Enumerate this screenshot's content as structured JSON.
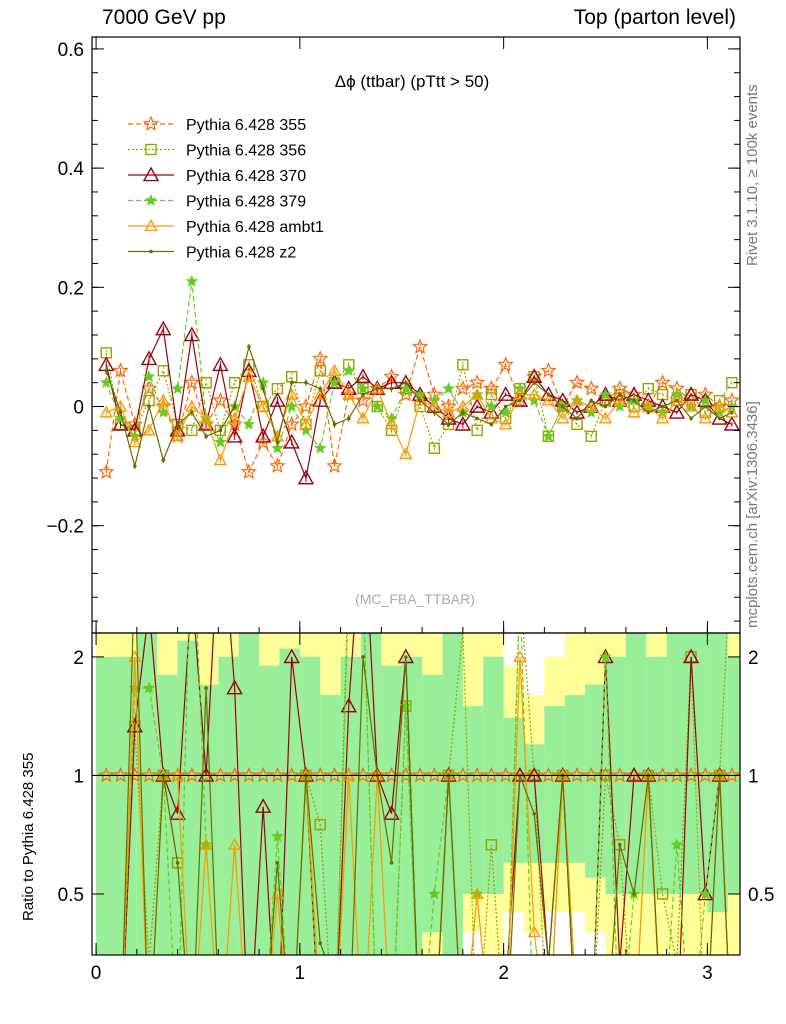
{
  "header": {
    "left": "7000 GeV pp",
    "right": "Top (parton level)"
  },
  "side_labels": {
    "rivet": "Rivet 3.1.10, ≥ 100k events",
    "mcplots": "mcplots.cern.ch [arXiv:1306.3436]"
  },
  "ratio_ylabel": "Ratio to Pythia 6.428 355",
  "chart_data": {
    "type": "line",
    "title": "Δϕ (ttbar) (pTtt > 50)",
    "watermark": "(MC_FBA_TTBAR)",
    "main_ylim": [
      -0.38,
      0.62
    ],
    "xlim": [
      -0.02,
      3.16
    ],
    "main_yticks": [
      "0.6",
      "0.4",
      "0.2",
      "0",
      "−0.2"
    ],
    "ratio_ylim_log": [
      0.35,
      2.3
    ],
    "ratio_yticks": [
      "0.5",
      "1",
      "2"
    ],
    "xticks": [
      "0",
      "1",
      "2",
      "3"
    ],
    "ratio_reference": 1,
    "bands": {
      "x_start": 0.0,
      "bin_width": 0.1,
      "green": [
        [
          0.35,
          2.0
        ],
        [
          0.35,
          2.0
        ],
        [
          0.35,
          2.3
        ],
        [
          0.35,
          1.8
        ],
        [
          0.35,
          2.2
        ],
        [
          0.35,
          1.7
        ],
        [
          0.35,
          2.0
        ],
        [
          0.35,
          2.3
        ],
        [
          0.35,
          1.9
        ],
        [
          0.35,
          2.1
        ],
        [
          0.35,
          2.0
        ],
        [
          0.35,
          1.6
        ],
        [
          0.35,
          2.0
        ],
        [
          0.35,
          2.3
        ],
        [
          0.35,
          1.9
        ],
        [
          0.35,
          2.0
        ],
        [
          0.4,
          1.8
        ],
        [
          0.35,
          2.3
        ],
        [
          0.5,
          1.5
        ],
        [
          0.5,
          2.0
        ],
        [
          0.6,
          1.4
        ],
        [
          0.6,
          1.2
        ],
        [
          0.6,
          1.5
        ],
        [
          0.6,
          1.6
        ],
        [
          0.55,
          1.7
        ],
        [
          0.5,
          2.0
        ],
        [
          0.5,
          2.3
        ],
        [
          0.5,
          2.0
        ],
        [
          0.5,
          2.3
        ],
        [
          0.5,
          2.3
        ],
        [
          0.45,
          2.3
        ],
        [
          0.5,
          2.0
        ]
      ],
      "yellow": [
        [
          0.35,
          2.3
        ],
        [
          0.35,
          2.3
        ],
        [
          0.35,
          2.3
        ],
        [
          0.35,
          2.3
        ],
        [
          0.35,
          2.3
        ],
        [
          0.35,
          2.3
        ],
        [
          0.35,
          2.3
        ],
        [
          0.35,
          2.3
        ],
        [
          0.35,
          2.3
        ],
        [
          0.35,
          2.3
        ],
        [
          0.35,
          2.3
        ],
        [
          0.35,
          2.3
        ],
        [
          0.35,
          2.3
        ],
        [
          0.35,
          2.3
        ],
        [
          0.35,
          2.3
        ],
        [
          0.35,
          2.3
        ],
        [
          0.35,
          2.3
        ],
        [
          0.35,
          2.3
        ],
        [
          0.4,
          2.3
        ],
        [
          0.35,
          2.3
        ],
        [
          0.45,
          1.9
        ],
        [
          0.4,
          1.6
        ],
        [
          0.45,
          2.0
        ],
        [
          0.45,
          2.3
        ],
        [
          0.4,
          2.3
        ],
        [
          0.35,
          2.3
        ],
        [
          0.35,
          2.3
        ],
        [
          0.35,
          2.3
        ],
        [
          0.35,
          2.3
        ],
        [
          0.35,
          2.3
        ],
        [
          0.35,
          2.3
        ],
        [
          0.35,
          2.3
        ]
      ]
    },
    "x": [
      0.05,
      0.12,
      0.19,
      0.26,
      0.33,
      0.4,
      0.47,
      0.54,
      0.61,
      0.68,
      0.75,
      0.82,
      0.89,
      0.96,
      1.03,
      1.1,
      1.17,
      1.24,
      1.31,
      1.38,
      1.45,
      1.52,
      1.59,
      1.66,
      1.73,
      1.8,
      1.87,
      1.94,
      2.01,
      2.08,
      2.15,
      2.22,
      2.29,
      2.36,
      2.43,
      2.5,
      2.57,
      2.64,
      2.71,
      2.78,
      2.85,
      2.92,
      2.99,
      3.06,
      3.12
    ],
    "series": [
      {
        "name": "Pythia 6.428 355",
        "color": "#ff6600",
        "dash": "5,3",
        "marker": "star",
        "y": [
          -0.11,
          0.06,
          -0.03,
          0.03,
          0.0,
          -0.05,
          0.04,
          -0.03,
          0.01,
          -0.03,
          -0.11,
          -0.06,
          -0.1,
          -0.03,
          0.0,
          0.08,
          -0.1,
          0.02,
          0.01,
          0.03,
          0.05,
          0.02,
          0.1,
          0.02,
          0.0,
          0.03,
          0.04,
          0.03,
          0.07,
          0.01,
          0.05,
          0.06,
          0.0,
          0.04,
          0.03,
          0.01,
          0.03,
          0.02,
          0.0,
          0.04,
          0.03,
          0.01,
          0.02,
          0.0,
          0.01
        ]
      },
      {
        "name": "Pythia 6.428 356",
        "color": "#99a000",
        "dash": "2,2",
        "marker": "square",
        "y": [
          0.09,
          -0.03,
          -0.04,
          0.01,
          0.06,
          -0.03,
          -0.04,
          0.04,
          -0.04,
          0.04,
          0.07,
          0.0,
          0.03,
          0.05,
          -0.03,
          0.06,
          0.04,
          0.07,
          0.03,
          0.0,
          -0.04,
          0.03,
          0.0,
          -0.07,
          -0.03,
          0.07,
          -0.04,
          0.02,
          -0.02,
          0.03,
          0.05,
          -0.05,
          0.0,
          -0.03,
          -0.05,
          0.01,
          0.02,
          0.0,
          0.03,
          0.02,
          0.01,
          0.02,
          -0.01,
          0.01,
          0.04
        ]
      },
      {
        "name": "Pythia 6.428 370",
        "color": "#990011",
        "dash": "",
        "marker": "triangle",
        "y": [
          0.07,
          -0.03,
          -0.04,
          0.08,
          0.13,
          -0.04,
          0.12,
          -0.03,
          0.07,
          -0.05,
          0.06,
          -0.05,
          0.01,
          -0.06,
          -0.12,
          0.01,
          0.04,
          0.03,
          0.05,
          0.03,
          0.04,
          0.04,
          0.02,
          0.0,
          -0.02,
          -0.03,
          0.0,
          -0.01,
          0.02,
          0.01,
          0.05,
          0.02,
          0.01,
          -0.01,
          0.0,
          0.02,
          0.01,
          0.02,
          0.01,
          0.0,
          -0.01,
          0.02,
          0.01,
          -0.02,
          -0.03
        ]
      },
      {
        "name": "Pythia 6.428 379",
        "color": "#66cc22",
        "dash": "5,3",
        "marker": "star6",
        "y": [
          0.04,
          -0.02,
          -0.05,
          0.05,
          -0.01,
          0.03,
          0.21,
          -0.02,
          -0.06,
          0.0,
          -0.03,
          0.04,
          -0.07,
          0.0,
          -0.04,
          -0.07,
          0.04,
          0.06,
          0.03,
          0.0,
          -0.02,
          0.03,
          0.02,
          0.01,
          0.03,
          -0.01,
          0.02,
          0.0,
          -0.01,
          0.03,
          0.01,
          -0.05,
          0.0,
          0.01,
          -0.01,
          0.02,
          0.0,
          0.01,
          0.0,
          -0.01,
          0.02,
          0.0,
          0.01,
          -0.01,
          0.0
        ]
      },
      {
        "name": "Pythia 6.428 ambt1",
        "color": "#ff9900",
        "dash": "",
        "marker": "otriangle",
        "y": [
          -0.01,
          0.0,
          -0.06,
          -0.04,
          0.01,
          -0.05,
          0.0,
          -0.02,
          -0.09,
          -0.02,
          0.05,
          0.0,
          -0.05,
          0.02,
          -0.03,
          0.02,
          0.06,
          0.02,
          -0.02,
          0.03,
          -0.03,
          -0.08,
          0.01,
          0.0,
          -0.01,
          0.0,
          0.02,
          -0.02,
          -0.03,
          0.02,
          0.02,
          0.01,
          -0.02,
          0.01,
          0.0,
          -0.02,
          0.01,
          -0.01,
          0.0,
          -0.02,
          0.01,
          0.0,
          -0.02,
          0.0,
          -0.01
        ]
      },
      {
        "name": "Pythia 6.428 z2",
        "color": "#6b6b00",
        "dash": "",
        "marker": "dot",
        "y": [
          0.06,
          -0.01,
          -0.1,
          0.0,
          -0.09,
          -0.03,
          -0.01,
          -0.05,
          -0.04,
          0.0,
          0.1,
          0.03,
          -0.06,
          0.04,
          0.04,
          0.03,
          -0.03,
          -0.02,
          0.02,
          0.03,
          0.03,
          0.04,
          0.01,
          -0.01,
          -0.03,
          -0.01,
          -0.02,
          -0.03,
          0.0,
          0.01,
          0.04,
          0.02,
          0.0,
          -0.02,
          0.01,
          0.0,
          0.02,
          0.01,
          -0.01,
          0.0,
          0.01,
          -0.02,
          0.0,
          -0.02,
          -0.01
        ]
      }
    ]
  }
}
